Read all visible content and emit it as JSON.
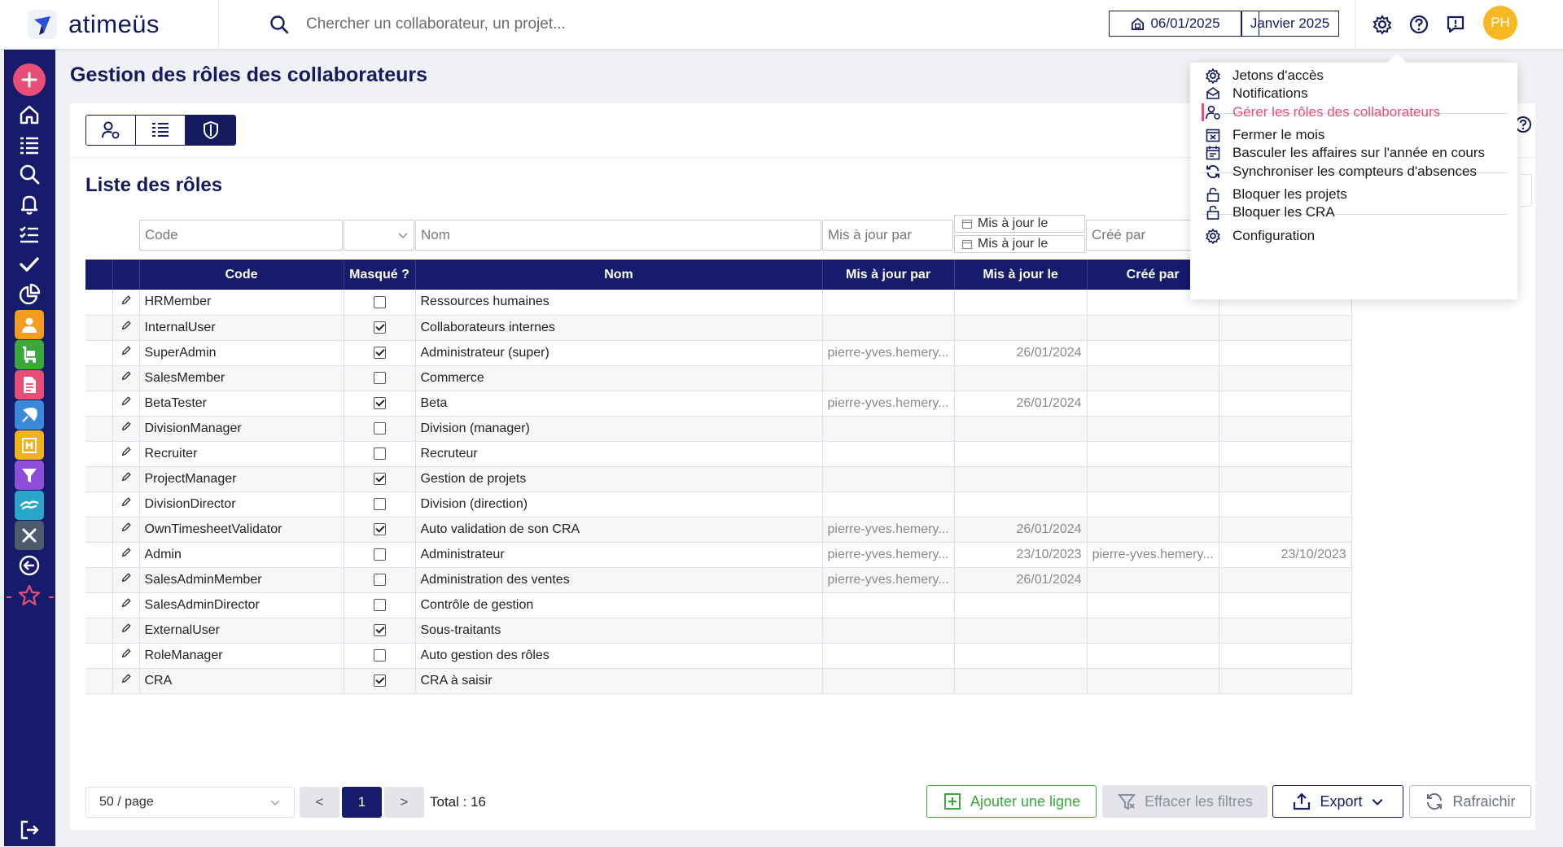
{
  "app": {
    "logo_text": "atimeüs"
  },
  "topbar": {
    "search_placeholder": "Chercher un collaborateur, un projet...",
    "date": "06/01/2025",
    "month": "Janvier 2025",
    "avatar_initials": "PH",
    "icons": [
      "search-icon",
      "home-calendar-icon",
      "gear-icon",
      "help-icon",
      "feedback-icon"
    ]
  },
  "page": {
    "title": "Gestion des rôles des collaborateurs",
    "list_title": "Liste des rôles"
  },
  "filters": {
    "code_placeholder": "Code",
    "nom_placeholder": "Nom",
    "maj_par_placeholder": "Mis à jour par",
    "maj_le_from": "Mis à jour le",
    "maj_le_to": "Mis à jour le",
    "cree_par_placeholder": "Créé par"
  },
  "table": {
    "columns": [
      "Code",
      "Masqué ?",
      "Nom",
      "Mis à jour par",
      "Mis à jour le",
      "Créé par"
    ],
    "rows": [
      {
        "code": "HRMember",
        "hidden": false,
        "nom": "Ressources humaines",
        "maj_par": "",
        "maj_le": "",
        "cree_par": "",
        "cree_le": ""
      },
      {
        "code": "InternalUser",
        "hidden": true,
        "nom": "Collaborateurs internes",
        "maj_par": "",
        "maj_le": "",
        "cree_par": "",
        "cree_le": ""
      },
      {
        "code": "SuperAdmin",
        "hidden": true,
        "nom": "Administrateur (super)",
        "maj_par": "pierre-yves.hemery...",
        "maj_le": "26/01/2024",
        "cree_par": "",
        "cree_le": ""
      },
      {
        "code": "SalesMember",
        "hidden": false,
        "nom": "Commerce",
        "maj_par": "",
        "maj_le": "",
        "cree_par": "",
        "cree_le": ""
      },
      {
        "code": "BetaTester",
        "hidden": true,
        "nom": "Beta",
        "maj_par": "pierre-yves.hemery...",
        "maj_le": "26/01/2024",
        "cree_par": "",
        "cree_le": ""
      },
      {
        "code": "DivisionManager",
        "hidden": false,
        "nom": "Division (manager)",
        "maj_par": "",
        "maj_le": "",
        "cree_par": "",
        "cree_le": ""
      },
      {
        "code": "Recruiter",
        "hidden": false,
        "nom": "Recruteur",
        "maj_par": "",
        "maj_le": "",
        "cree_par": "",
        "cree_le": ""
      },
      {
        "code": "ProjectManager",
        "hidden": true,
        "nom": "Gestion de projets",
        "maj_par": "",
        "maj_le": "",
        "cree_par": "",
        "cree_le": ""
      },
      {
        "code": "DivisionDirector",
        "hidden": false,
        "nom": "Division (direction)",
        "maj_par": "",
        "maj_le": "",
        "cree_par": "",
        "cree_le": ""
      },
      {
        "code": "OwnTimesheetValidator",
        "hidden": true,
        "nom": "Auto validation de son CRA",
        "maj_par": "pierre-yves.hemery...",
        "maj_le": "26/01/2024",
        "cree_par": "",
        "cree_le": ""
      },
      {
        "code": "Admin",
        "hidden": false,
        "nom": "Administrateur",
        "maj_par": "pierre-yves.hemery...",
        "maj_le": "23/10/2023",
        "cree_par": "pierre-yves.hemery...",
        "cree_le": "23/10/2023"
      },
      {
        "code": "SalesAdminMember",
        "hidden": false,
        "nom": "Administration des ventes",
        "maj_par": "pierre-yves.hemery...",
        "maj_le": "26/01/2024",
        "cree_par": "",
        "cree_le": ""
      },
      {
        "code": "SalesAdminDirector",
        "hidden": false,
        "nom": "Contrôle de gestion",
        "maj_par": "",
        "maj_le": "",
        "cree_par": "",
        "cree_le": ""
      },
      {
        "code": "ExternalUser",
        "hidden": true,
        "nom": "Sous-traitants",
        "maj_par": "",
        "maj_le": "",
        "cree_par": "",
        "cree_le": ""
      },
      {
        "code": "RoleManager",
        "hidden": false,
        "nom": "Auto gestion des rôles",
        "maj_par": "",
        "maj_le": "",
        "cree_par": "",
        "cree_le": ""
      },
      {
        "code": "CRA",
        "hidden": true,
        "nom": "CRA à saisir",
        "maj_par": "",
        "maj_le": "",
        "cree_par": "",
        "cree_le": ""
      }
    ]
  },
  "dropdown": {
    "items": [
      {
        "label": "Jetons d'accès",
        "icon": "gear-icon"
      },
      {
        "label": "Notifications",
        "icon": "envelope-icon"
      },
      {
        "label": "Gérer les rôles des collaborateurs",
        "icon": "user-roles-icon",
        "active": true
      },
      {
        "label": "Fermer le mois",
        "icon": "calendar-x-icon"
      },
      {
        "label": "Basculer les affaires sur l'année en cours",
        "icon": "calendar-icon"
      },
      {
        "label": "Synchroniser les compteurs d'absences",
        "icon": "sync-icon"
      },
      {
        "label": "Bloquer les projets",
        "icon": "lock-icon"
      },
      {
        "label": "Bloquer les CRA",
        "icon": "lock-icon"
      },
      {
        "label": "Configuration",
        "icon": "gear-icon"
      }
    ]
  },
  "footer": {
    "page_size": "50 / page",
    "prev": "<",
    "current_page": "1",
    "next": ">",
    "total": "Total : 16",
    "add_label": "Ajouter une ligne",
    "clear_label": "Effacer les filtres",
    "export_label": "Export",
    "refresh_label": "Rafraichir"
  },
  "colors": {
    "navy": "#171b6b",
    "pink": "#e94e77",
    "green": "#3aa83a",
    "avatar": "#f7b824"
  }
}
